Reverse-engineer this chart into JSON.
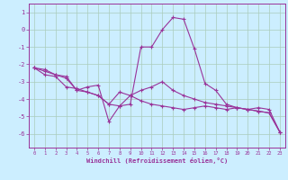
{
  "xlabel": "Windchill (Refroidissement éolien,°C)",
  "ylabel": "",
  "background_color": "#cceeff",
  "line_color": "#993399",
  "grid_color": "#aaccbb",
  "xlim": [
    -0.5,
    23.5
  ],
  "ylim": [
    -6.8,
    1.5
  ],
  "yticks": [
    1,
    0,
    -1,
    -2,
    -3,
    -4,
    -5,
    -6
  ],
  "xticks": [
    0,
    1,
    2,
    3,
    4,
    5,
    6,
    7,
    8,
    9,
    10,
    11,
    12,
    13,
    14,
    15,
    16,
    17,
    18,
    19,
    20,
    21,
    22,
    23
  ],
  "series": [
    {
      "x": [
        0,
        1,
        2,
        3,
        4,
        5,
        6,
        7,
        8,
        9,
        10,
        11,
        12,
        13,
        14,
        15,
        16,
        17,
        18,
        19,
        20,
        21,
        22,
        23
      ],
      "y": [
        -2.2,
        -2.6,
        -2.7,
        -3.3,
        -3.4,
        -3.6,
        -3.8,
        -4.3,
        -3.6,
        -3.8,
        -4.1,
        -4.3,
        -4.4,
        -4.5,
        -4.6,
        -4.5,
        -4.4,
        -4.5,
        -4.6,
        -4.5,
        -4.6,
        -4.7,
        -4.8,
        -5.9
      ]
    },
    {
      "x": [
        0,
        1,
        2,
        3,
        4,
        5,
        6,
        7,
        8,
        9,
        10,
        11,
        12,
        13,
        14,
        15,
        16,
        17,
        18,
        19,
        20,
        21,
        22,
        23
      ],
      "y": [
        -2.2,
        -2.4,
        -2.6,
        -2.7,
        -3.5,
        -3.3,
        -3.2,
        -5.3,
        -4.4,
        -4.3,
        -1.0,
        -1.0,
        0.0,
        0.7,
        0.6,
        -1.1,
        -3.1,
        -3.5,
        -4.3,
        -4.5,
        -4.6,
        -4.5,
        -4.6,
        -5.9
      ]
    },
    {
      "x": [
        0,
        1,
        2,
        3,
        4,
        5,
        6,
        7,
        8,
        9,
        10,
        11,
        12,
        13,
        14,
        15,
        16,
        17,
        18,
        19,
        20,
        21,
        22,
        23
      ],
      "y": [
        -2.2,
        -2.3,
        -2.6,
        -2.8,
        -3.5,
        -3.6,
        -3.8,
        -4.3,
        -4.4,
        -3.8,
        -3.5,
        -3.3,
        -3.0,
        -3.5,
        -3.8,
        -4.0,
        -4.2,
        -4.3,
        -4.4,
        -4.5,
        -4.6,
        -4.7,
        -4.8,
        -5.9
      ]
    }
  ]
}
